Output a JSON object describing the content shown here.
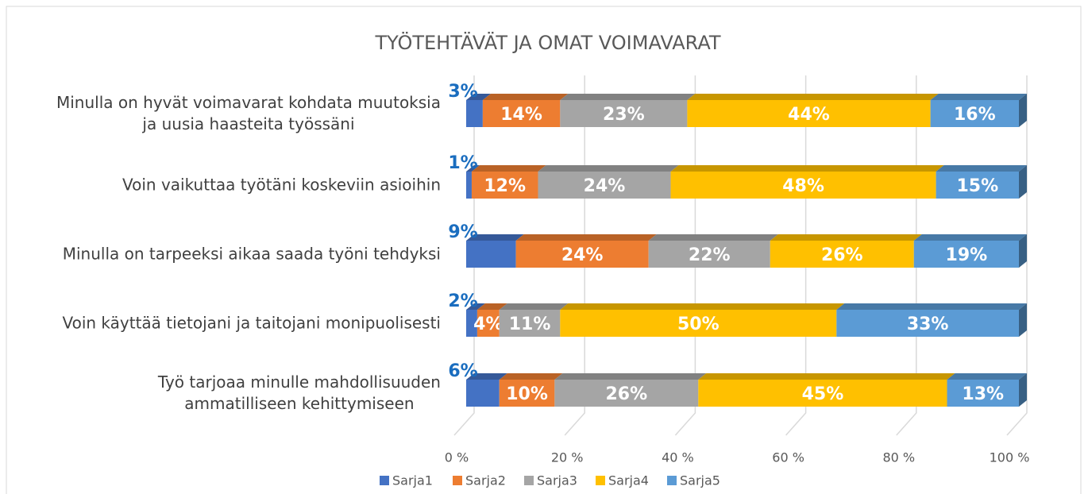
{
  "chart_data": {
    "type": "bar",
    "orientation": "horizontal",
    "stacked": true,
    "title": "TYÖTEHTÄVÄT JA OMAT VOIMAVARAT",
    "categories": [
      "Minulla on hyvät voimavarat kohdata muutoksia\nja uusia haasteita työssäni",
      "Voin vaikuttaa työtäni koskeviin asioihin",
      "Minulla on tarpeeksi aikaa saada työni tehdyksi",
      "Voin käyttää tietojani ja taitojani monipuolisesti",
      "Työ tarjoaa minulle mahdollisuuden\nammatilliseen kehittymiseen"
    ],
    "series": [
      {
        "name": "Sarja1",
        "color": "#4472c4",
        "values": [
          3,
          1,
          9,
          2,
          6
        ],
        "value_labels": [
          "3%",
          "1%",
          "9%",
          "2%",
          "6%"
        ]
      },
      {
        "name": "Sarja2",
        "color": "#ed7d31",
        "values": [
          14,
          12,
          24,
          4,
          10
        ],
        "value_labels": [
          "14%",
          "12%",
          "24%",
          "4%",
          "10%"
        ]
      },
      {
        "name": "Sarja3",
        "color": "#a5a5a5",
        "values": [
          23,
          24,
          22,
          11,
          26
        ],
        "value_labels": [
          "23%",
          "24%",
          "22%",
          "11%",
          "26%"
        ]
      },
      {
        "name": "Sarja4",
        "color": "#ffc000",
        "values": [
          44,
          48,
          26,
          50,
          45
        ],
        "value_labels": [
          "44%",
          "48%",
          "26%",
          "50%",
          "45%"
        ]
      },
      {
        "name": "Sarja5",
        "color": "#5b9bd5",
        "values": [
          16,
          15,
          19,
          33,
          13
        ],
        "value_labels": [
          "16%",
          "15%",
          "19%",
          "33%",
          "13%"
        ]
      }
    ],
    "xlim": [
      0,
      100
    ],
    "xticks": [
      {
        "value": 0,
        "label": "0 %"
      },
      {
        "value": 20,
        "label": "20 %"
      },
      {
        "value": 40,
        "label": "40 %"
      },
      {
        "value": 60,
        "label": "60 %"
      },
      {
        "value": 80,
        "label": "80 %"
      },
      {
        "value": 100,
        "label": "100 %"
      }
    ],
    "grid": true,
    "legend": "bottom"
  }
}
